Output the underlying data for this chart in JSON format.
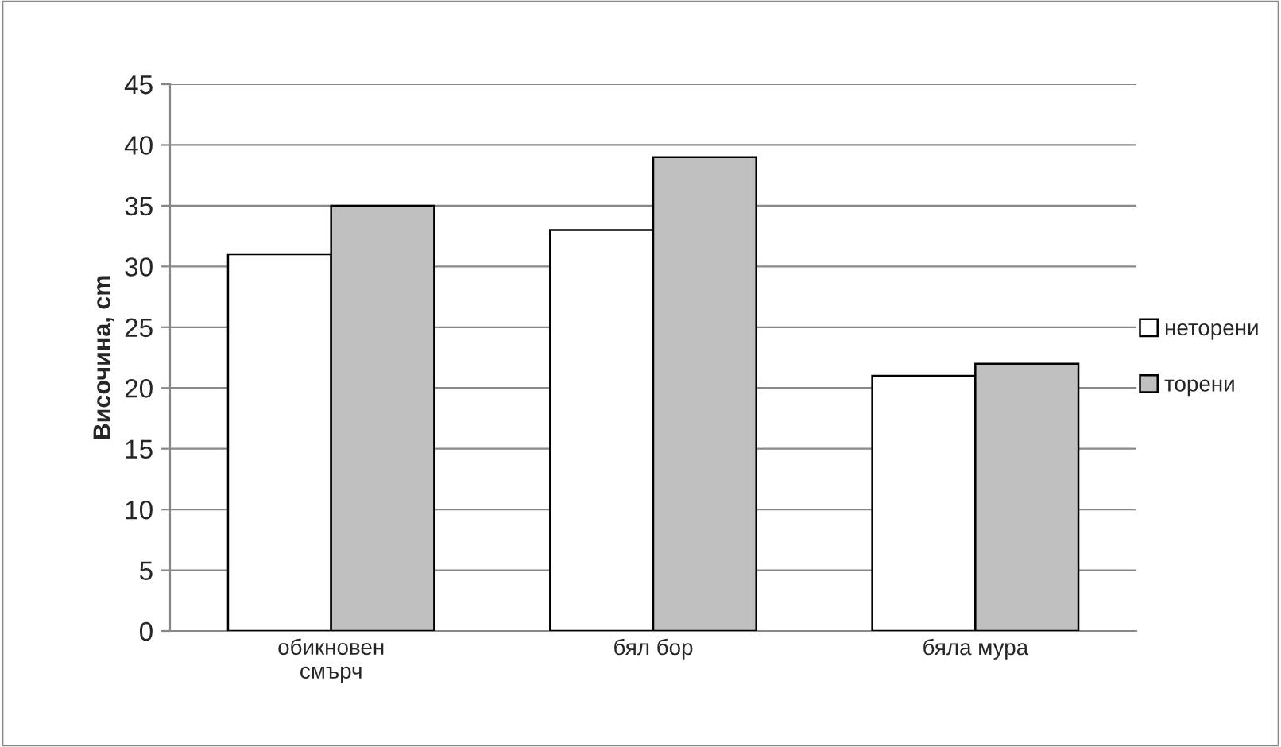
{
  "chart_data": {
    "type": "bar",
    "ylabel": "Височина, cm",
    "categories": [
      "обикновен\nсмърч",
      "бял бор",
      "бяла мура"
    ],
    "series": [
      {
        "name": "неторени",
        "color": "#ffffff",
        "values": [
          31,
          33,
          21
        ]
      },
      {
        "name": "торени",
        "color": "#c0c0c0",
        "values": [
          35,
          39,
          22
        ]
      }
    ],
    "ylim": [
      0,
      45
    ],
    "yticks": [
      0,
      5,
      10,
      15,
      20,
      25,
      30,
      35,
      40,
      45
    ],
    "grid": "y",
    "legend": "right"
  }
}
